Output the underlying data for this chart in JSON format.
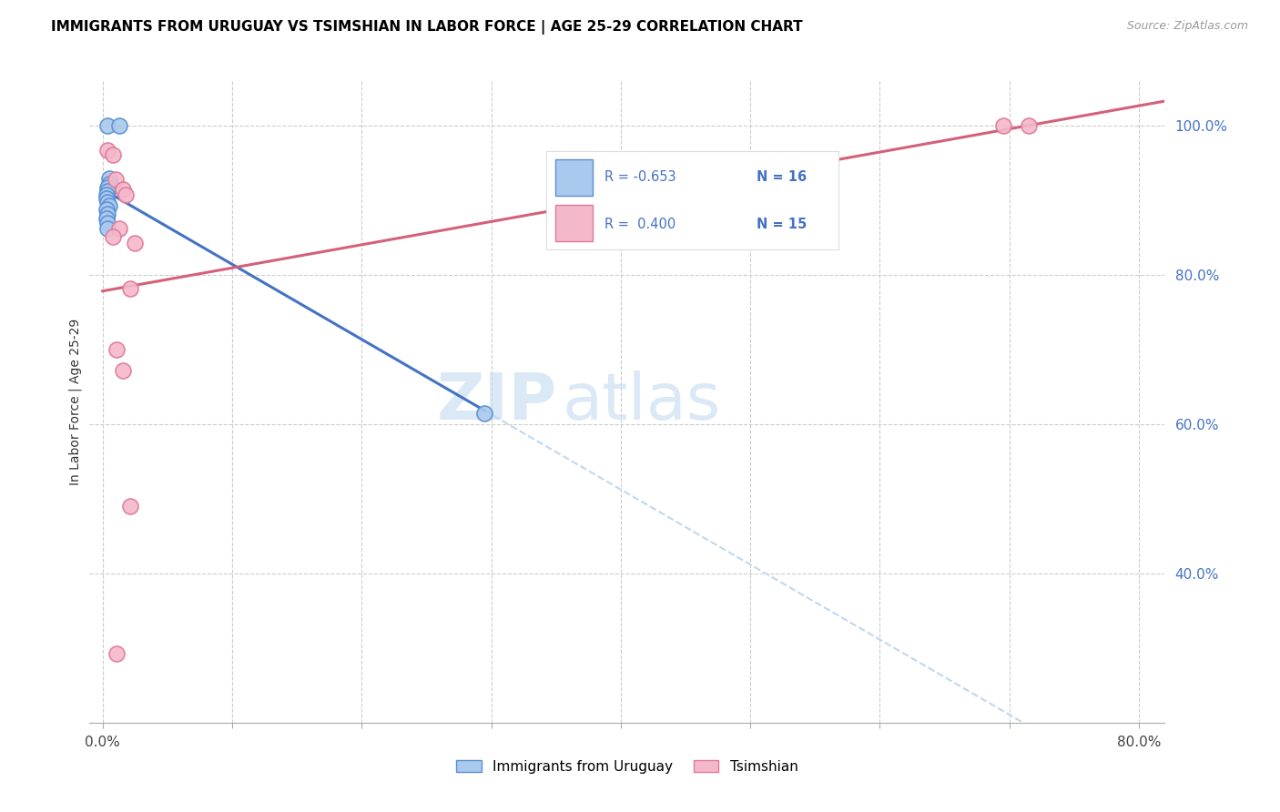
{
  "title": "IMMIGRANTS FROM URUGUAY VS TSIMSHIAN IN LABOR FORCE | AGE 25-29 CORRELATION CHART",
  "source": "Source: ZipAtlas.com",
  "ylabel": "In Labor Force | Age 25-29",
  "x_min": -0.01,
  "x_max": 0.82,
  "y_min": 0.2,
  "y_max": 1.06,
  "x_ticks": [
    0.0,
    0.1,
    0.2,
    0.3,
    0.4,
    0.5,
    0.6,
    0.7,
    0.8
  ],
  "x_tick_labels": [
    "0.0%",
    "",
    "",
    "",
    "",
    "",
    "",
    "",
    "80.0%"
  ],
  "y_ticks": [
    0.4,
    0.6,
    0.8,
    1.0
  ],
  "y_tick_labels": [
    "40.0%",
    "60.0%",
    "80.0%",
    "100.0%"
  ],
  "uruguay_fill_color": "#aac9ee",
  "tsimshian_fill_color": "#f4b8cb",
  "uruguay_edge_color": "#5a8fd4",
  "tsimshian_edge_color": "#e07898",
  "uruguay_line_color": "#4472c4",
  "tsimshian_line_color": "#d4607a",
  "trend_ext_color": "#c0d8ee",
  "watermark_zip": "ZIP",
  "watermark_atlas": "atlas",
  "uruguay_points": [
    [
      0.004,
      1.0
    ],
    [
      0.013,
      1.0
    ],
    [
      0.005,
      0.93
    ],
    [
      0.005,
      0.922
    ],
    [
      0.004,
      0.918
    ],
    [
      0.004,
      0.913
    ],
    [
      0.003,
      0.908
    ],
    [
      0.003,
      0.903
    ],
    [
      0.004,
      0.898
    ],
    [
      0.005,
      0.893
    ],
    [
      0.003,
      0.888
    ],
    [
      0.004,
      0.882
    ],
    [
      0.003,
      0.876
    ],
    [
      0.004,
      0.87
    ],
    [
      0.004,
      0.862
    ],
    [
      0.295,
      0.615
    ]
  ],
  "tsimshian_points": [
    [
      0.004,
      0.968
    ],
    [
      0.008,
      0.962
    ],
    [
      0.695,
      1.0
    ],
    [
      0.715,
      1.0
    ],
    [
      0.01,
      0.928
    ],
    [
      0.016,
      0.915
    ],
    [
      0.018,
      0.908
    ],
    [
      0.013,
      0.862
    ],
    [
      0.008,
      0.852
    ],
    [
      0.025,
      0.843
    ],
    [
      0.021,
      0.782
    ],
    [
      0.011,
      0.7
    ],
    [
      0.016,
      0.672
    ],
    [
      0.021,
      0.49
    ],
    [
      0.011,
      0.292
    ]
  ]
}
